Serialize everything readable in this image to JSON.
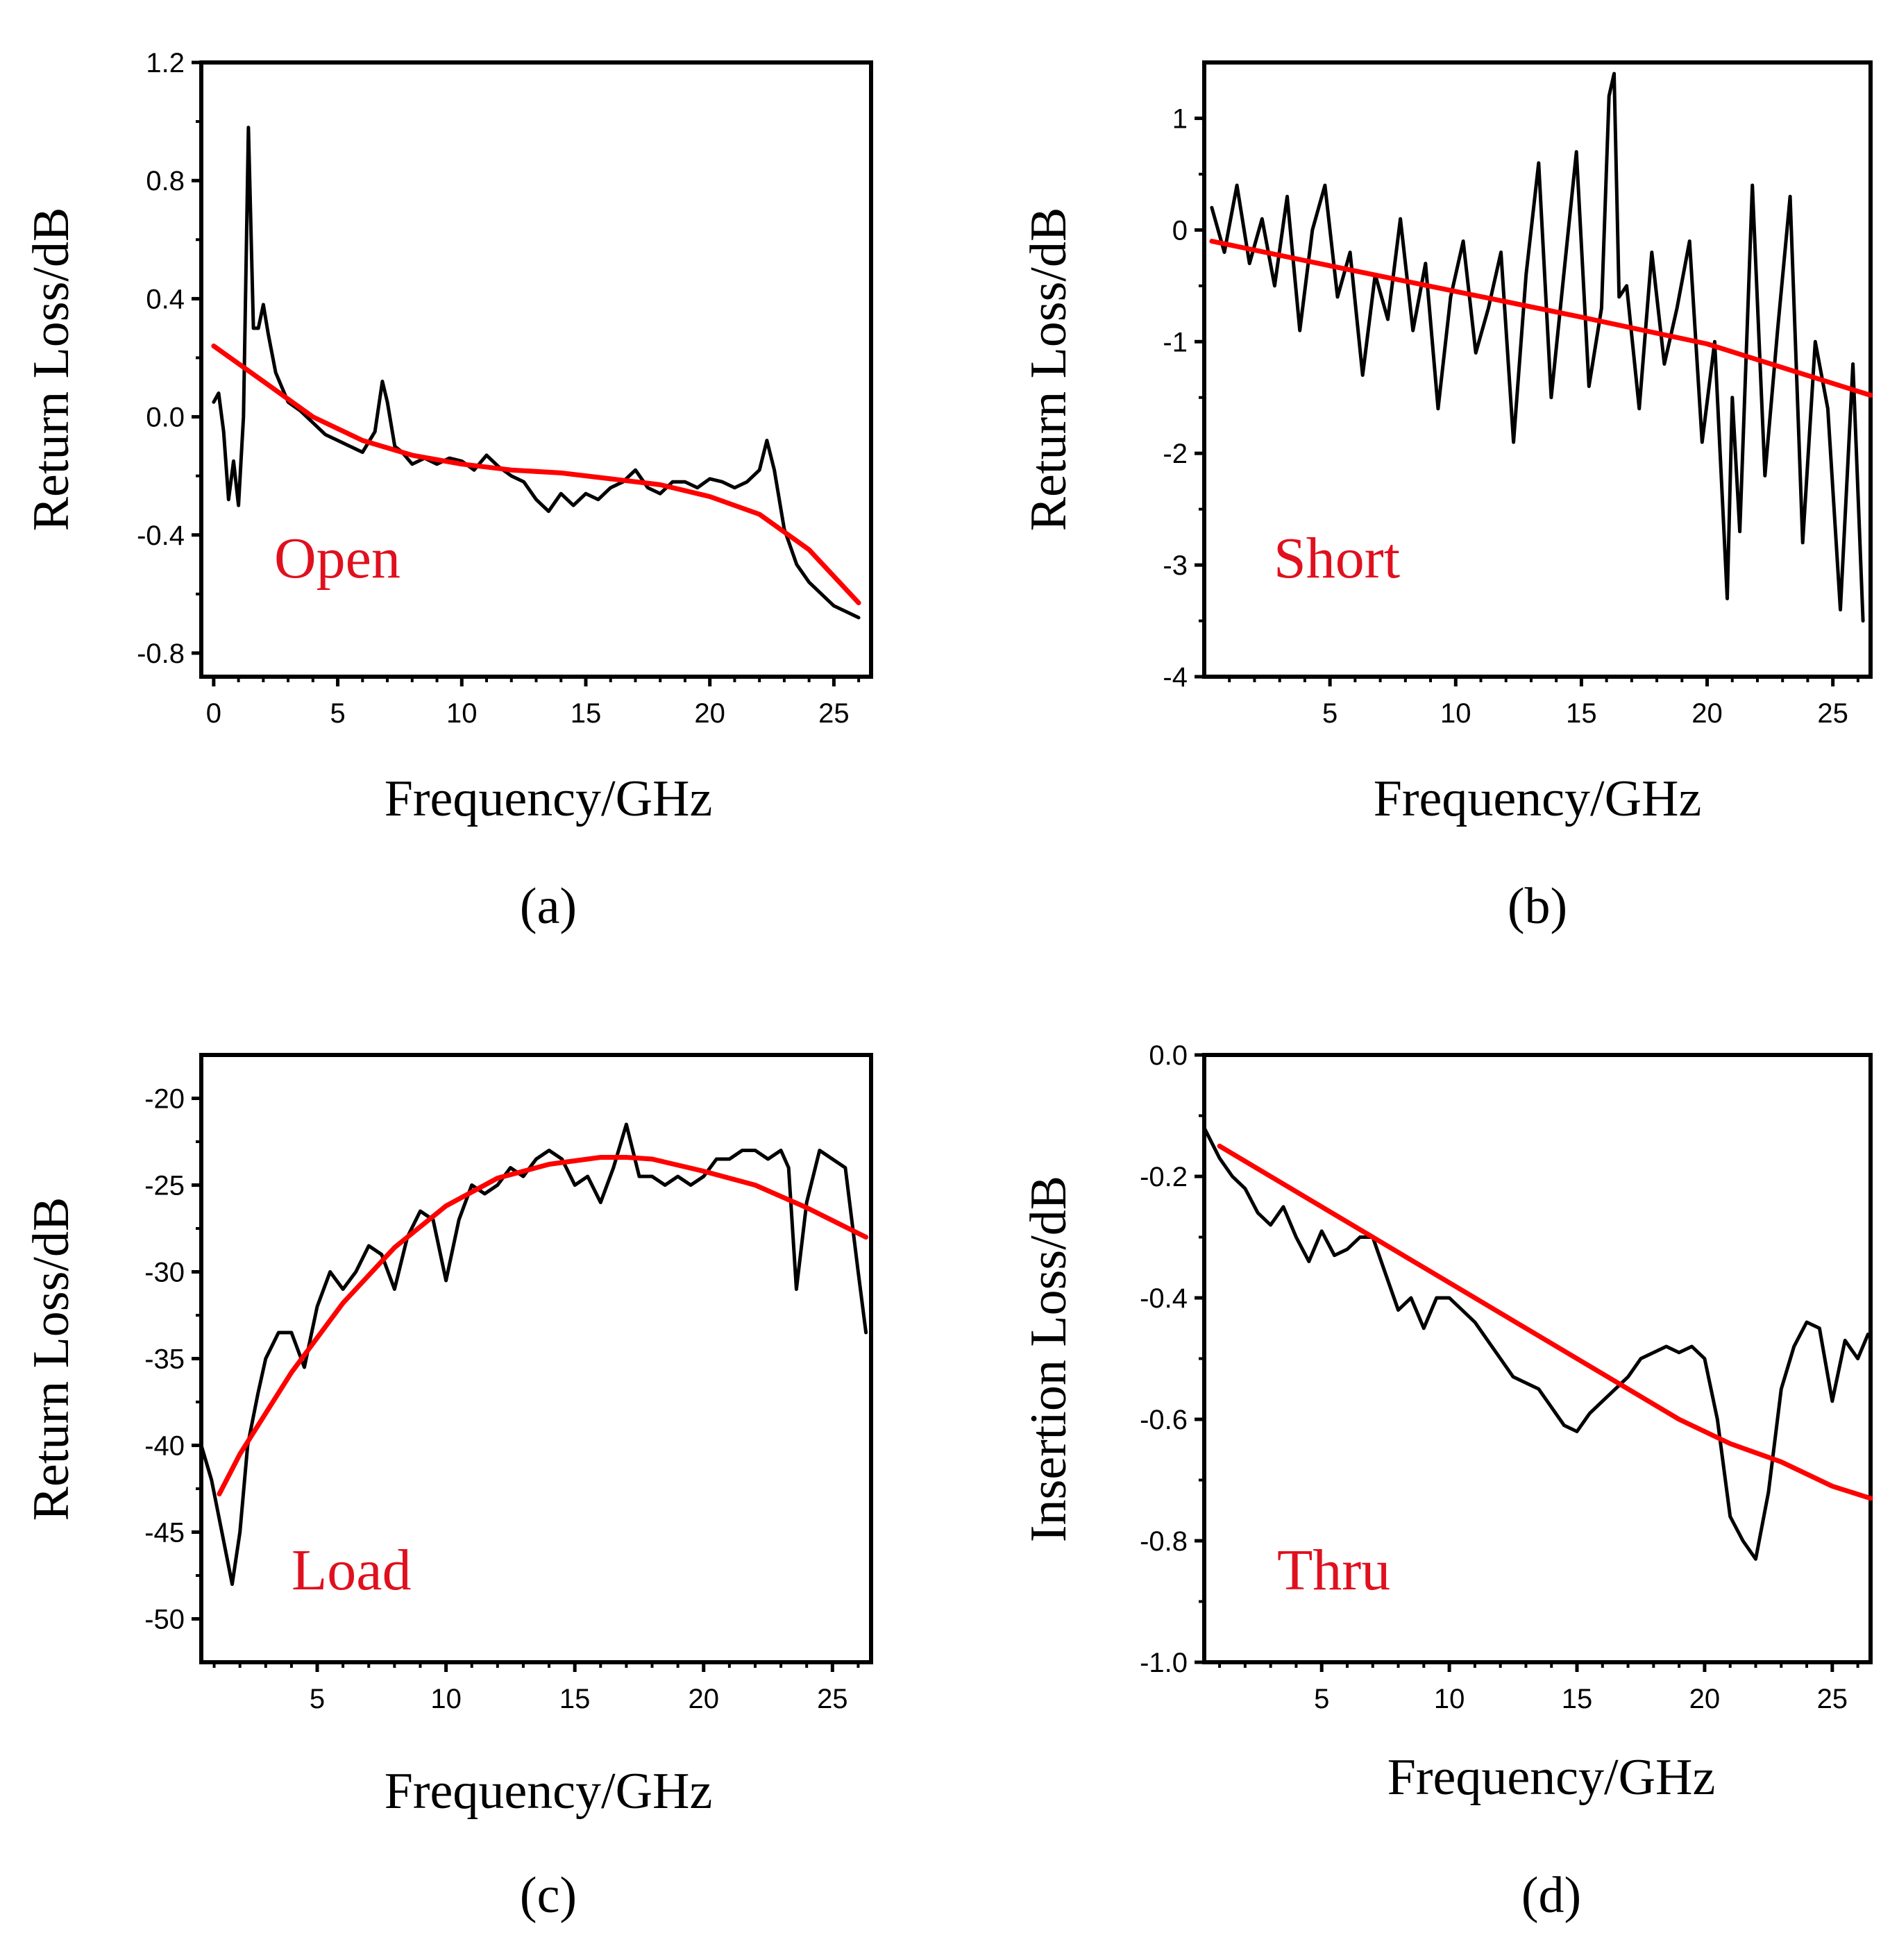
{
  "colors": {
    "measured": "#000000",
    "fit": "#ff0000",
    "annotation": "#e0101e",
    "frame": "#000000"
  },
  "chart_data": [
    {
      "id": "a",
      "type": "line",
      "caption": "(a)",
      "annotation": "Open",
      "xlabel": "Frequency/GHz",
      "ylabel": "Return Loss/dB",
      "xlim": [
        -0.5,
        26.5
      ],
      "ylim": [
        -0.88,
        1.2
      ],
      "xticks": [
        0,
        5,
        10,
        15,
        20,
        25
      ],
      "xtick_labels": [
        "0",
        "5",
        "10",
        "15",
        "20",
        "25"
      ],
      "yticks": [
        1.2,
        0.8,
        0.4,
        0.0,
        -0.4,
        -0.8
      ],
      "ytick_labels": [
        "1.2",
        "0.8",
        "0.4",
        "0.0",
        "-0.4",
        "-0.8"
      ],
      "series": [
        {
          "name": "measured",
          "x": [
            0,
            0.2,
            0.4,
            0.6,
            0.8,
            1.0,
            1.2,
            1.4,
            1.6,
            1.8,
            2.0,
            2.2,
            2.5,
            3.0,
            3.5,
            4.0,
            4.5,
            5.0,
            5.5,
            6.0,
            6.5,
            6.8,
            7.0,
            7.3,
            7.6,
            8.0,
            8.5,
            9.0,
            9.5,
            10.0,
            10.5,
            11.0,
            11.5,
            12.0,
            12.5,
            13.0,
            13.5,
            14.0,
            14.5,
            15.0,
            15.5,
            16.0,
            16.5,
            17.0,
            17.5,
            18.0,
            18.5,
            19.0,
            19.5,
            20.0,
            20.5,
            21.0,
            21.5,
            22.0,
            22.3,
            22.6,
            23.0,
            23.5,
            24.0,
            24.5,
            25.0,
            25.5,
            26.0
          ],
          "y": [
            0.05,
            0.08,
            -0.05,
            -0.28,
            -0.15,
            -0.3,
            0.0,
            0.98,
            0.3,
            0.3,
            0.38,
            0.28,
            0.15,
            0.05,
            0.02,
            -0.02,
            -0.06,
            -0.08,
            -0.1,
            -0.12,
            -0.05,
            0.12,
            0.05,
            -0.1,
            -0.12,
            -0.16,
            -0.14,
            -0.16,
            -0.14,
            -0.15,
            -0.18,
            -0.13,
            -0.17,
            -0.2,
            -0.22,
            -0.28,
            -0.32,
            -0.26,
            -0.3,
            -0.26,
            -0.28,
            -0.24,
            -0.22,
            -0.18,
            -0.24,
            -0.26,
            -0.22,
            -0.22,
            -0.24,
            -0.21,
            -0.22,
            -0.24,
            -0.22,
            -0.18,
            -0.08,
            -0.18,
            -0.38,
            -0.5,
            -0.56,
            -0.6,
            -0.64,
            -0.66,
            -0.68
          ]
        },
        {
          "name": "fit",
          "x": [
            0,
            2,
            4,
            6,
            8,
            10,
            12,
            14,
            16,
            18,
            20,
            22,
            24,
            26
          ],
          "y": [
            0.24,
            0.12,
            0.0,
            -0.08,
            -0.13,
            -0.16,
            -0.18,
            -0.19,
            -0.21,
            -0.23,
            -0.27,
            -0.33,
            -0.45,
            -0.63
          ]
        }
      ]
    },
    {
      "id": "b",
      "type": "line",
      "caption": "(b)",
      "annotation": "Short",
      "xlabel": "Frequency/GHz",
      "ylabel": "Return Loss/dB",
      "xlim": [
        0,
        26.5
      ],
      "ylim": [
        -4,
        1.5
      ],
      "xticks": [
        5,
        10,
        15,
        20,
        25
      ],
      "xtick_labels": [
        "5",
        "10",
        "15",
        "20",
        "25"
      ],
      "yticks": [
        1,
        0,
        -1,
        -2,
        -3,
        -4
      ],
      "ytick_labels": [
        "1",
        "0",
        "-1",
        "-2",
        "-3",
        "-4"
      ],
      "series": [
        {
          "name": "measured",
          "x": [
            0.3,
            0.8,
            1.3,
            1.8,
            2.3,
            2.8,
            3.3,
            3.8,
            4.3,
            4.8,
            5.3,
            5.8,
            6.3,
            6.8,
            7.3,
            7.8,
            8.3,
            8.8,
            9.3,
            9.8,
            10.3,
            10.8,
            11.3,
            11.8,
            12.3,
            12.8,
            13.3,
            13.8,
            14.3,
            14.8,
            15.3,
            15.8,
            16.1,
            16.3,
            16.5,
            16.8,
            17.3,
            17.8,
            18.3,
            18.8,
            19.3,
            19.8,
            20.3,
            20.8,
            21.0,
            21.3,
            21.8,
            22.3,
            22.8,
            23.3,
            23.8,
            24.3,
            24.8,
            25.3,
            25.8,
            26.2
          ],
          "y": [
            0.2,
            -0.2,
            0.4,
            -0.3,
            0.1,
            -0.5,
            0.3,
            -0.9,
            0.0,
            0.4,
            -0.6,
            -0.2,
            -1.3,
            -0.4,
            -0.8,
            0.1,
            -0.9,
            -0.3,
            -1.6,
            -0.6,
            -0.1,
            -1.1,
            -0.7,
            -0.2,
            -1.9,
            -0.4,
            0.6,
            -1.5,
            -0.4,
            0.7,
            -1.4,
            -0.7,
            1.2,
            1.4,
            -0.6,
            -0.5,
            -1.6,
            -0.2,
            -1.2,
            -0.7,
            -0.1,
            -1.9,
            -1.0,
            -3.3,
            -1.5,
            -2.7,
            0.4,
            -2.2,
            -0.9,
            0.3,
            -2.8,
            -1.0,
            -1.6,
            -3.4,
            -1.2,
            -3.5
          ]
        },
        {
          "name": "fit",
          "x": [
            0.3,
            5,
            10,
            15,
            20,
            26.5
          ],
          "y": [
            -0.1,
            -0.32,
            -0.55,
            -0.78,
            -1.02,
            -1.48
          ]
        }
      ]
    },
    {
      "id": "c",
      "type": "line",
      "caption": "(c)",
      "annotation": "Load",
      "xlabel": "Frequency/GHz",
      "ylabel": "Return Loss/dB",
      "xlim": [
        0.5,
        26.5
      ],
      "ylim": [
        -52.5,
        -17.5
      ],
      "xticks": [
        5,
        10,
        15,
        20,
        25
      ],
      "xtick_labels": [
        "5",
        "10",
        "15",
        "20",
        "25"
      ],
      "yticks": [
        -20,
        -25,
        -30,
        -35,
        -40,
        -45,
        -50
      ],
      "ytick_labels": [
        "-20",
        "-25",
        "-30",
        "-35",
        "-40",
        "-45",
        "-50"
      ],
      "series": [
        {
          "name": "measured",
          "x": [
            0.5,
            0.9,
            1.3,
            1.7,
            2.0,
            2.3,
            2.7,
            3.0,
            3.5,
            4.0,
            4.5,
            5.0,
            5.5,
            6.0,
            6.5,
            7.0,
            7.5,
            8.0,
            8.5,
            9.0,
            9.5,
            10.0,
            10.5,
            11.0,
            11.5,
            12.0,
            12.5,
            13.0,
            13.5,
            14.0,
            14.5,
            15.0,
            15.5,
            16.0,
            16.5,
            17.0,
            17.5,
            18.0,
            18.5,
            19.0,
            19.5,
            20.0,
            20.5,
            21.0,
            21.5,
            22.0,
            22.5,
            23.0,
            23.3,
            23.6,
            24.0,
            24.5,
            25.0,
            25.5,
            26.0,
            26.3
          ],
          "y": [
            -40.0,
            -42.0,
            -45.0,
            -48.0,
            -45.0,
            -40.0,
            -37.0,
            -35.0,
            -33.5,
            -33.5,
            -35.5,
            -32.0,
            -30.0,
            -31.0,
            -30.0,
            -28.5,
            -29.0,
            -31.0,
            -28.0,
            -26.5,
            -27.0,
            -30.5,
            -27.0,
            -25.0,
            -25.5,
            -25.0,
            -24.0,
            -24.5,
            -23.5,
            -23.0,
            -23.5,
            -25.0,
            -24.5,
            -26.0,
            -24.0,
            -21.5,
            -24.5,
            -24.5,
            -25.0,
            -24.5,
            -25.0,
            -24.5,
            -23.5,
            -23.5,
            -23.0,
            -23.0,
            -23.5,
            -23.0,
            -24.0,
            -31.0,
            -26.0,
            -23.0,
            -23.5,
            -24.0,
            -30.0,
            -33.5
          ]
        },
        {
          "name": "fit",
          "x": [
            1.2,
            2,
            4,
            6,
            8,
            10,
            12,
            14,
            16,
            17,
            18,
            20,
            22,
            24,
            26.3
          ],
          "y": [
            -42.8,
            -40.5,
            -35.8,
            -31.8,
            -28.6,
            -26.2,
            -24.6,
            -23.8,
            -23.4,
            -23.4,
            -23.5,
            -24.2,
            -25.0,
            -26.3,
            -28.0
          ]
        }
      ]
    },
    {
      "id": "d",
      "type": "line",
      "caption": "(d)",
      "annotation": "Thru",
      "xlabel": "Frequency/GHz",
      "ylabel": "Insertion Loss/dB",
      "xlim": [
        0.4,
        26.5
      ],
      "ylim": [
        -1.0,
        0.0
      ],
      "xticks": [
        5,
        10,
        15,
        20,
        25
      ],
      "xtick_labels": [
        "5",
        "10",
        "15",
        "20",
        "25"
      ],
      "yticks": [
        0.0,
        -0.2,
        -0.4,
        -0.6,
        -0.8,
        -1.0
      ],
      "ytick_labels": [
        "0.0",
        "-0.2",
        "-0.4",
        "-0.6",
        "-0.8",
        "-1.0"
      ],
      "series": [
        {
          "name": "measured",
          "x": [
            0.4,
            1.0,
            1.5,
            2.0,
            2.5,
            3.0,
            3.5,
            4.0,
            4.5,
            5.0,
            5.5,
            6.0,
            6.5,
            7.0,
            7.5,
            8.0,
            8.5,
            9.0,
            9.5,
            10.0,
            10.5,
            11.0,
            11.5,
            12.0,
            12.5,
            13.0,
            13.5,
            14.0,
            14.5,
            15.0,
            15.5,
            16.0,
            16.5,
            17.0,
            17.5,
            18.0,
            18.5,
            19.0,
            19.5,
            20.0,
            20.5,
            21.0,
            21.5,
            22.0,
            22.5,
            23.0,
            23.5,
            24.0,
            24.5,
            25.0,
            25.5,
            26.0,
            26.4
          ],
          "y": [
            -0.12,
            -0.17,
            -0.2,
            -0.22,
            -0.26,
            -0.28,
            -0.25,
            -0.3,
            -0.34,
            -0.29,
            -0.33,
            -0.32,
            -0.3,
            -0.3,
            -0.36,
            -0.42,
            -0.4,
            -0.45,
            -0.4,
            -0.4,
            -0.42,
            -0.44,
            -0.47,
            -0.5,
            -0.53,
            -0.54,
            -0.55,
            -0.58,
            -0.61,
            -0.62,
            -0.59,
            -0.57,
            -0.55,
            -0.53,
            -0.5,
            -0.49,
            -0.48,
            -0.49,
            -0.48,
            -0.5,
            -0.6,
            -0.76,
            -0.8,
            -0.83,
            -0.72,
            -0.55,
            -0.48,
            -0.44,
            -0.45,
            -0.57,
            -0.47,
            -0.5,
            -0.46
          ]
        },
        {
          "name": "fit",
          "x": [
            1.0,
            3,
            5,
            7,
            9,
            11,
            13,
            15,
            17,
            19,
            21,
            23,
            25,
            26.5
          ],
          "y": [
            -0.15,
            -0.2,
            -0.25,
            -0.3,
            -0.35,
            -0.4,
            -0.45,
            -0.5,
            -0.55,
            -0.6,
            -0.64,
            -0.67,
            -0.71,
            -0.73
          ]
        }
      ]
    }
  ]
}
